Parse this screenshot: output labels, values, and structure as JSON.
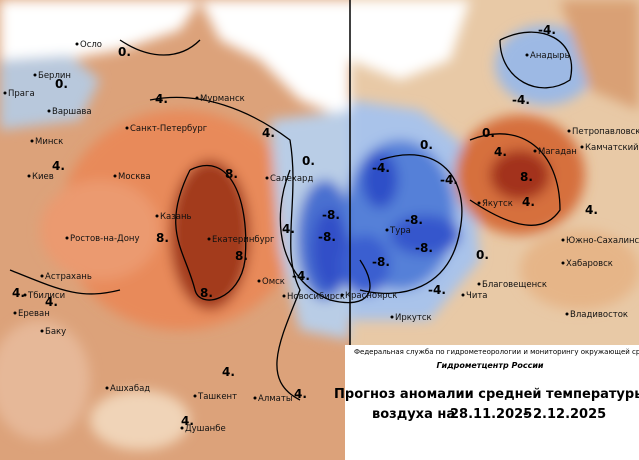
{
  "map": {
    "cities": [
      "Осло",
      "Берлин",
      "Прага",
      "Варшава",
      "Мурманск",
      "Санкт-Петербург",
      "Минск",
      "Москва",
      "Киев",
      "Салехард",
      "Казань",
      "Екатеринбург",
      "Ростов-на-Дону",
      "Астрахань",
      "Тбилиси",
      "Ереван",
      "Баку",
      "Омск",
      "Новосибирск",
      "Ашхабад",
      "Ташкент",
      "Алматы",
      "Душанбе",
      "Анадырь",
      "Петропавловск",
      "Камчатский",
      "Магадан",
      "Якутск",
      "Тура",
      "Южно-Сахалинск",
      "Хабаровск",
      "Благовещенск",
      "Красноярск",
      "Чита",
      "Иркутск",
      "Владивосток"
    ],
    "contour_labels": [
      "0.",
      "0.",
      "4.",
      "4.",
      "4.",
      "8.",
      "8.",
      "8.",
      "8.",
      "4.",
      "4.",
      "4.",
      "4.",
      "4.",
      "0.",
      "4.",
      "-4.",
      "-4.",
      "-4.",
      "0.",
      "4.",
      "8.",
      "4.",
      "0.",
      "-4.",
      "-4.",
      "-8.",
      "-8.",
      "-8.",
      "-4.",
      "0.",
      "-8.",
      "-8.",
      "4."
    ]
  },
  "footer": {
    "agency": "Федеральная служба по гидрометеорологии и мониторингу окружающей среды",
    "center": "Гидрометцентр России",
    "title_line1": "Прогноз аномалии средней температуры",
    "title_line2_prefix": "воздуха на",
    "date_from": "28.11.2025",
    "dash": "-",
    "date_to": "2.12.2025"
  }
}
